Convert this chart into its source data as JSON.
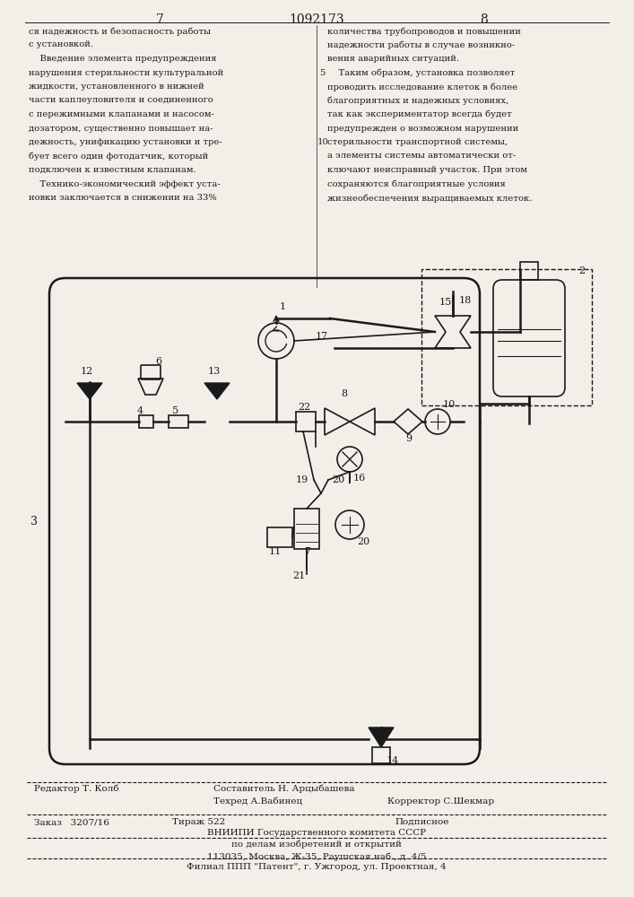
{
  "page_number_left": "7",
  "page_number_center": "1092173",
  "page_number_right": "8",
  "left_column_lines": [
    "ся надежность и безопасность работы",
    "с установкой.",
    "    Введение элемента предупреждения",
    "нарушения стерильности культуральной",
    "жидкости, установленного в нижней",
    "части каплеуловителя и соединенного",
    "с пережимными клапанами и насосом-",
    "дозатором, существенно повышает на-",
    "дежность, унификацию установки и тре-",
    "бует всего один фотодатчик, который",
    "подключен к известным клапанам.",
    "    Технико-экономический эффект уста-",
    "новки заключается в снижении на 33%"
  ],
  "right_column_lines": [
    "количества трубопроводов и повышении",
    "надежности работы в случае возникно-",
    "вения аварийных ситуаций.",
    "    Таким образом, установка позволяет",
    "проводить исследование клеток в более",
    "благоприятных и надежных условиях,",
    "так как экспериментатор всегда будет",
    "предупрежден о возможном нарушении",
    "стерильности транспортной системы,",
    "а элементы системы автоматически от-",
    "ключают неисправный участок. При этом",
    "сохраняются благоприятные условия",
    "жизнеобеспечения выращиваемых клеток."
  ],
  "footer_editor": "Редактор Т. Колб",
  "footer_composer": "Составитель Н. Арцыбашева",
  "footer_techred": "Техред А.Вабинец",
  "footer_corrector": "Корректор С.Шекмар",
  "footer_order": "Заказ   3207/16",
  "footer_tirazh": "Тираж 522",
  "footer_podpisnoe": "Подписное",
  "footer_vniipи": "ВНИИПИ Государственного комитета СССР",
  "footer_po_delam": "по делам изобретений и открытий",
  "footer_address": "113035, Москва, Ж-35, Раушская наб., д. 4/5",
  "footer_filial": "Филиал ППП \"Патент\", г. Ужгород, ул. Проектная, 4",
  "bg_color": "#f2efe9",
  "text_color": "#1a1a1a",
  "diagram_color": "#1a1a1a"
}
